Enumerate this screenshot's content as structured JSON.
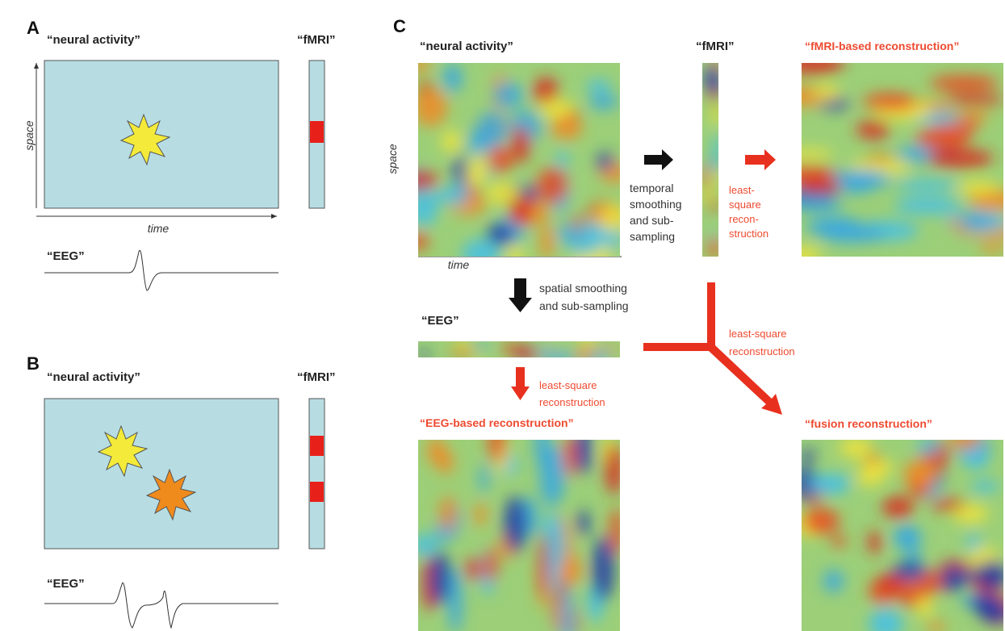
{
  "panel_a": {
    "label": "A",
    "neural_title": "“neural activity”",
    "fmri_title": "“fMRI”",
    "space_label": "space",
    "time_label": "time",
    "eeg_title": "“EEG”"
  },
  "panel_b": {
    "label": "B",
    "neural_title": "“neural activity”",
    "fmri_title": "“fMRI”",
    "eeg_title": "“EEG”"
  },
  "panel_c": {
    "label": "C",
    "neural_title": "“neural activity”",
    "space_label": "space",
    "time_label": "time",
    "fmri_title": "“fMRI”",
    "fmri_recon_title": "“fMRI-based reconstruction”",
    "temporal_step": [
      "temporal",
      "smoothing",
      "and sub-",
      "sampling"
    ],
    "fmri_recon_step": [
      "least-",
      "square",
      "recon-",
      "struction"
    ],
    "spatial_step": [
      "spatial smoothing",
      "and sub-sampling"
    ],
    "eeg_title": "“EEG”",
    "eeg_recon_step": [
      "least-square",
      "reconstruction"
    ],
    "eeg_recon_title": "“EEG-based reconstruction”",
    "fusion_step": [
      "least-square",
      "reconstruction"
    ],
    "fusion_title": "“fusion reconstruction”"
  }
}
